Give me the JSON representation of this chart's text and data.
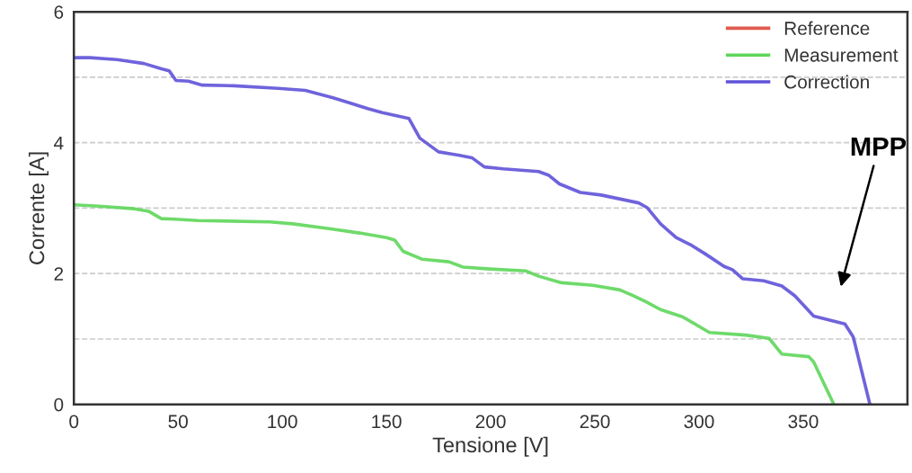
{
  "chart_data": {
    "type": "line",
    "xlabel": "Tensione [V]",
    "ylabel": "Corrente [A]",
    "xlim": [
      0,
      400
    ],
    "xticks": [
      0,
      50,
      100,
      150,
      200,
      250,
      300,
      350
    ],
    "ylim": [
      0,
      6
    ],
    "yticks": [
      0,
      {
        "value": 1,
        "label": null
      },
      2,
      {
        "value": 3,
        "label": null
      },
      4,
      {
        "value": 5,
        "label": null
      },
      6
    ],
    "grid": "y",
    "legend": "top right",
    "line_style": "solid",
    "marker": "none",
    "series": [
      {
        "name": "Reference",
        "color": "#e05a4e"
      },
      {
        "name": "Measurement",
        "color": "#5ed65a",
        "x": [
          0,
          12,
          29,
          36,
          42,
          48.7,
          59.5,
          94,
          105,
          124,
          137,
          150,
          154,
          158,
          167,
          180,
          186.6,
          199.6,
          217,
          223,
          234,
          249,
          262,
          268.5,
          275,
          281.5,
          292,
          305,
          322.4,
          333.6,
          339.7,
          352.6,
          355,
          364.7
        ],
        "values": [
          3.05,
          3.03,
          2.99,
          2.95,
          2.84,
          2.83,
          2.81,
          2.79,
          2.76,
          2.68,
          2.62,
          2.55,
          2.51,
          2.34,
          2.22,
          2.18,
          2.1,
          2.07,
          2.04,
          1.96,
          1.86,
          1.82,
          1.75,
          1.66,
          1.56,
          1.45,
          1.34,
          1.1,
          1.06,
          1.01,
          0.77,
          0.73,
          0.65,
          0
        ]
      },
      {
        "name": "Correction",
        "color": "#5f52d8",
        "x": [
          0,
          7.8,
          20.7,
          33.6,
          42,
          45.7,
          49,
          55,
          61.6,
          76.7,
          98,
          111,
          124,
          130,
          141,
          148,
          160.8,
          166,
          175,
          184.5,
          191,
          197,
          206,
          223,
          228,
          233,
          243,
          253,
          271,
          275,
          281.5,
          289,
          296.5,
          303,
          312,
          316,
          321,
          331,
          339.7,
          346,
          355,
          370,
          374,
          382
        ],
        "values": [
          5.3,
          5.3,
          5.27,
          5.21,
          5.13,
          5.1,
          4.95,
          4.94,
          4.88,
          4.87,
          4.83,
          4.8,
          4.69,
          4.63,
          4.52,
          4.46,
          4.37,
          4.07,
          3.86,
          3.81,
          3.77,
          3.63,
          3.6,
          3.56,
          3.5,
          3.37,
          3.24,
          3.2,
          3.08,
          3.01,
          2.76,
          2.55,
          2.43,
          2.3,
          2.11,
          2.06,
          1.92,
          1.89,
          1.81,
          1.66,
          1.35,
          1.23,
          1.03,
          0
        ]
      }
    ],
    "annotations": [
      "MPP"
    ]
  }
}
